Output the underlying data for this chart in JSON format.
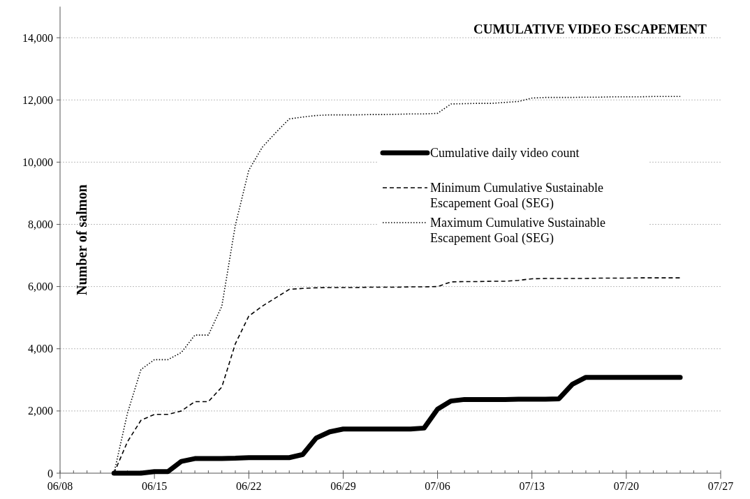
{
  "chart_data": {
    "type": "line",
    "title": "CUMULATIVE VIDEO ESCAPEMENT",
    "ylabel": "Number of salmon",
    "x": [
      "--06-12",
      "--06-13",
      "--06-14",
      "--06-15",
      "--06-16",
      "--06-17",
      "--06-18",
      "--06-19",
      "--06-20",
      "--06-21",
      "--06-22",
      "--06-23",
      "--06-24",
      "--06-25",
      "--06-26",
      "--06-27",
      "--06-28",
      "--06-29",
      "--06-30",
      "--07-01",
      "--07-02",
      "--07-03",
      "--07-04",
      "--07-05",
      "--07-06",
      "--07-07",
      "--07-08",
      "--07-09",
      "--07-10",
      "--07-11",
      "--07-12",
      "--07-13",
      "--07-14",
      "--07-15",
      "--07-16",
      "--07-17",
      "--07-18",
      "--07-19",
      "--07-20",
      "--07-21",
      "--07-22",
      "--07-23",
      "--07-24"
    ],
    "series": [
      {
        "name": "Cumulative daily video count",
        "color": "#000000",
        "line_style": "solid",
        "values": [
          0,
          0,
          0,
          50,
          50,
          380,
          470,
          470,
          470,
          480,
          500,
          500,
          500,
          500,
          600,
          1130,
          1330,
          1420,
          1420,
          1420,
          1420,
          1420,
          1420,
          1450,
          2060,
          2320,
          2370,
          2370,
          2370,
          2370,
          2380,
          2380,
          2380,
          2390,
          2860,
          3080,
          3080,
          3080,
          3080,
          3080,
          3080,
          3080,
          3080
        ]
      },
      {
        "name": "Minimum Cumulative Sustainable Escapement Goal (SEG)",
        "color": "#000000",
        "line_style": "dashed",
        "values": [
          0,
          1010,
          1700,
          1890,
          1890,
          2000,
          2300,
          2300,
          2770,
          4160,
          5050,
          5370,
          5640,
          5910,
          5940,
          5960,
          5970,
          5970,
          5970,
          5980,
          5980,
          5980,
          5990,
          5990,
          6000,
          6150,
          6160,
          6160,
          6170,
          6170,
          6200,
          6250,
          6260,
          6260,
          6260,
          6260,
          6270,
          6270,
          6270,
          6280,
          6280,
          6280,
          6280
        ]
      },
      {
        "name": "Maximum Cumulative Sustainable Escapement Goal (SEG)",
        "color": "#000000",
        "line_style": "dotted",
        "values": [
          0,
          1930,
          3330,
          3650,
          3650,
          3880,
          4440,
          4440,
          5370,
          7970,
          9740,
          10480,
          10950,
          11390,
          11450,
          11500,
          11520,
          11520,
          11520,
          11530,
          11530,
          11540,
          11550,
          11550,
          11570,
          11870,
          11880,
          11890,
          11890,
          11920,
          11950,
          12060,
          12080,
          12080,
          12080,
          12090,
          12090,
          12100,
          12100,
          12100,
          12110,
          12110,
          12110
        ]
      }
    ],
    "xlim": [
      "--06-08",
      "--07-27"
    ],
    "xticks": [
      {
        "value": "--06-08",
        "label": "06/08"
      },
      {
        "value": "--06-15",
        "label": "06/15"
      },
      {
        "value": "--06-22",
        "label": "06/22"
      },
      {
        "value": "--06-29",
        "label": "06/29"
      },
      {
        "value": "--07-06",
        "label": "07/06"
      },
      {
        "value": "--07-13",
        "label": "07/13"
      },
      {
        "value": "--07-20",
        "label": "07/20"
      },
      {
        "value": "--07-27",
        "label": "07/27"
      }
    ],
    "ylim": [
      0,
      15000
    ],
    "yticks": [
      {
        "value": 0,
        "label": "0"
      },
      {
        "value": 2000,
        "label": "2,000"
      },
      {
        "value": 4000,
        "label": "4,000"
      },
      {
        "value": 6000,
        "label": "6,000"
      },
      {
        "value": 8000,
        "label": "8,000"
      },
      {
        "value": 10000,
        "label": "10,000"
      },
      {
        "value": 12000,
        "label": "12,000"
      },
      {
        "value": 14000,
        "label": "14,000"
      }
    ],
    "grid": "y",
    "legend": "top right"
  }
}
